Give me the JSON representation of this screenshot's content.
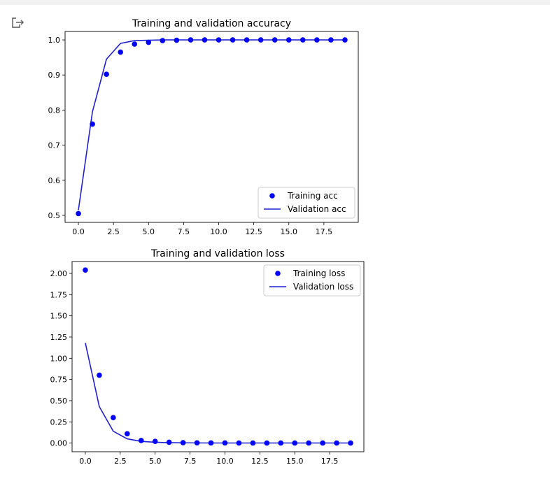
{
  "output_icon": "output-arrow-icon",
  "colors": {
    "training": "#0000ff",
    "validation": "#1f1fd4",
    "axes": "#000000",
    "topbar": "#f1f1f1"
  },
  "chart_data": [
    {
      "type": "line",
      "title": "Training and validation accuracy",
      "xlabel": "",
      "ylabel": "",
      "xlim": [
        -0.95,
        19.95
      ],
      "ylim": [
        0.48,
        1.024
      ],
      "xticks": [
        "0.0",
        "2.5",
        "5.0",
        "7.5",
        "10.0",
        "12.5",
        "15.0",
        "17.5"
      ],
      "yticks": [
        "0.5",
        "0.6",
        "0.7",
        "0.8",
        "0.9",
        "1.0"
      ],
      "grid": false,
      "legend_position": "lower-right",
      "x": [
        0,
        1,
        2,
        3,
        4,
        5,
        6,
        7,
        8,
        9,
        10,
        11,
        12,
        13,
        14,
        15,
        16,
        17,
        18,
        19
      ],
      "series": [
        {
          "name": "Training acc",
          "style": "dots",
          "values": [
            0.505,
            0.76,
            0.902,
            0.965,
            0.988,
            0.993,
            0.998,
            0.999,
            1.0,
            1.0,
            1.0,
            1.0,
            1.0,
            1.0,
            1.0,
            1.0,
            1.0,
            1.0,
            1.0,
            1.0
          ]
        },
        {
          "name": "Validation acc",
          "style": "line",
          "values": [
            0.515,
            0.795,
            0.945,
            0.99,
            0.998,
            0.999,
            1.0,
            1.0,
            1.0,
            1.0,
            1.0,
            1.0,
            1.0,
            1.0,
            1.0,
            1.0,
            1.0,
            1.0,
            1.0,
            1.0
          ]
        }
      ]
    },
    {
      "type": "line",
      "title": "Training and validation loss",
      "xlabel": "",
      "ylabel": "",
      "xlim": [
        -0.95,
        19.95
      ],
      "ylim": [
        -0.102,
        2.14
      ],
      "xticks": [
        "0.0",
        "2.5",
        "5.0",
        "7.5",
        "10.0",
        "12.5",
        "15.0",
        "17.5"
      ],
      "yticks": [
        "0.00",
        "0.25",
        "0.50",
        "0.75",
        "1.00",
        "1.25",
        "1.50",
        "1.75",
        "2.00"
      ],
      "grid": false,
      "legend_position": "upper-right",
      "x": [
        0,
        1,
        2,
        3,
        4,
        5,
        6,
        7,
        8,
        9,
        10,
        11,
        12,
        13,
        14,
        15,
        16,
        17,
        18,
        19
      ],
      "series": [
        {
          "name": "Training loss",
          "style": "dots",
          "values": [
            2.04,
            0.8,
            0.3,
            0.11,
            0.03,
            0.02,
            0.01,
            0.005,
            0.003,
            0.002,
            0.002,
            0.001,
            0.001,
            0.001,
            0.001,
            0.001,
            0.001,
            0.001,
            0.001,
            0.001
          ]
        },
        {
          "name": "Validation loss",
          "style": "line",
          "values": [
            1.18,
            0.43,
            0.14,
            0.05,
            0.02,
            0.01,
            0.005,
            0.003,
            0.002,
            0.001,
            0.001,
            0.001,
            0.001,
            0.001,
            0.001,
            0.001,
            0.001,
            0.001,
            0.001,
            0.001
          ]
        }
      ]
    }
  ]
}
